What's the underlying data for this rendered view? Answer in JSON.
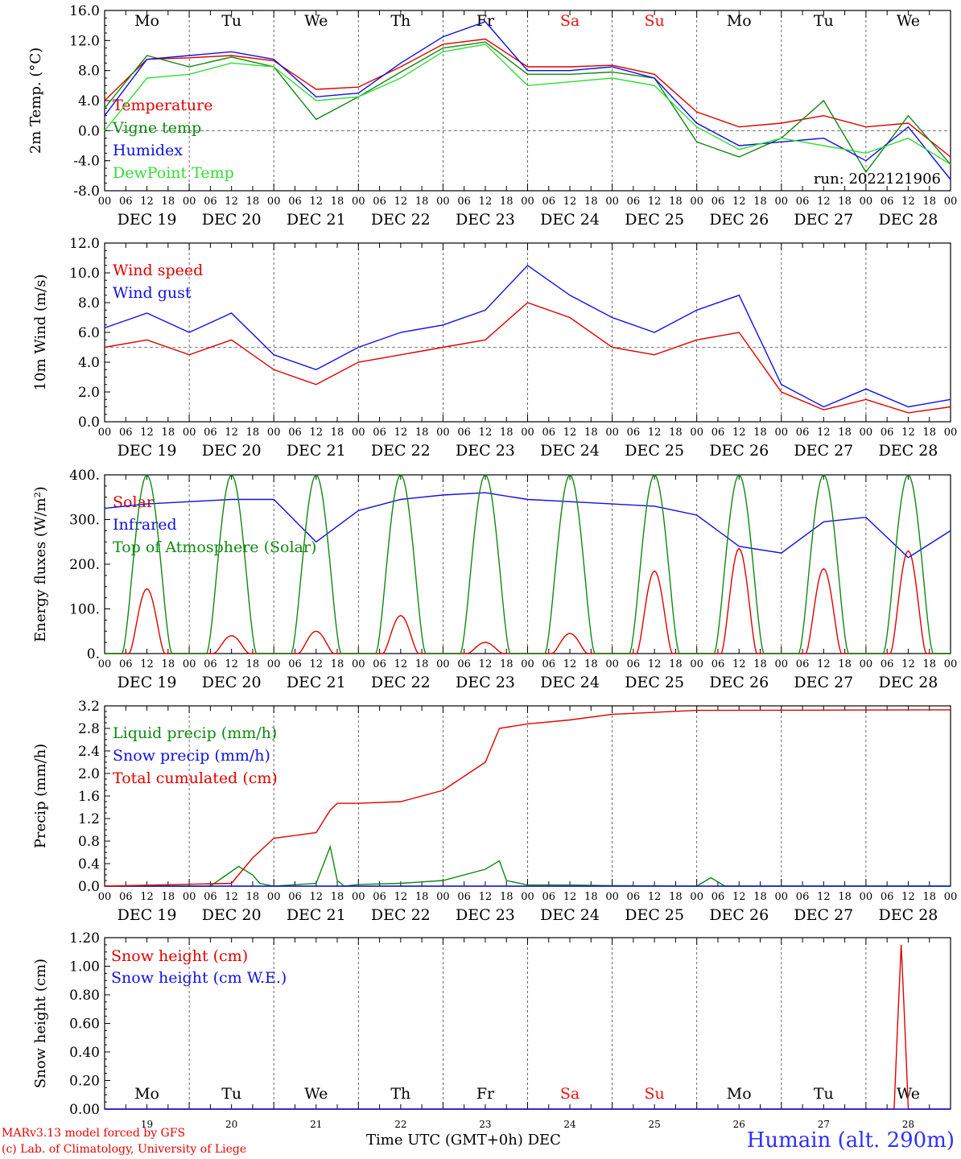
{
  "footer": {
    "model_line": "MARv3.13 model forced by GFS",
    "credit_line": "(c) Lab. of Climatology, University of Liege",
    "time_axis_label": "Time UTC (GMT+0h) DEC",
    "station": "Humain (alt. 290m)"
  },
  "colors": {
    "red": "#e00000",
    "green": "#118811",
    "blue": "#1010e0",
    "lightgreen": "#33dd33",
    "weekend": "#ee1111"
  },
  "days": {
    "weekday_labels": [
      "Mo",
      "Tu",
      "We",
      "Th",
      "Fr",
      "Sa",
      "Su",
      "Mo",
      "Tu",
      "We"
    ],
    "weekend_flags": [
      false,
      false,
      false,
      false,
      false,
      true,
      true,
      false,
      false,
      false
    ],
    "date_labels": [
      "DEC 19",
      "DEC 20",
      "DEC 21",
      "DEC 22",
      "DEC 23",
      "DEC 24",
      "DEC 25",
      "DEC 26",
      "DEC 27",
      "DEC 28"
    ],
    "day_numbers": [
      "19",
      "20",
      "21",
      "22",
      "23",
      "24",
      "25",
      "26",
      "27",
      "28"
    ],
    "hour_ticks": [
      "00",
      "06",
      "12",
      "18"
    ],
    "final_tick": "00"
  },
  "chart_data": [
    {
      "type": "line",
      "ylabel": "2m Temp. (°C)",
      "ylim": [
        -8,
        16
      ],
      "yticks": [
        "-8.0",
        "-4.0",
        "0.0",
        "4.0",
        "8.0",
        "12.0",
        "16.0"
      ],
      "reference_line": 0,
      "annotation": "run: 2022121906",
      "show_weekdays": true,
      "x_hours": [
        0,
        12,
        24,
        36,
        48,
        60,
        72,
        84,
        96,
        108,
        120,
        132,
        144,
        156,
        168,
        180,
        192,
        204,
        216,
        228,
        240
      ],
      "series": [
        {
          "name": "Temperature",
          "color": "#e00000",
          "values": [
            4.0,
            9.5,
            9.7,
            10.0,
            9.3,
            5.5,
            5.8,
            8.5,
            11.5,
            12.2,
            8.5,
            8.5,
            8.7,
            7.5,
            2.5,
            0.5,
            1.0,
            2.0,
            0.5,
            1.0,
            -3.5
          ]
        },
        {
          "name": "Vigne temp",
          "color": "#118811",
          "values": [
            3.0,
            10.0,
            8.5,
            9.8,
            8.5,
            1.5,
            4.5,
            7.8,
            11.0,
            11.8,
            7.5,
            7.5,
            7.8,
            7.0,
            -1.5,
            -3.5,
            -1.0,
            4.0,
            -5.5,
            2.0,
            -4.5
          ]
        },
        {
          "name": "Humidex",
          "color": "#1010e0",
          "values": [
            2.0,
            9.5,
            10.0,
            10.5,
            9.5,
            4.5,
            5.0,
            9.0,
            12.5,
            14.5,
            8.0,
            8.0,
            8.5,
            7.0,
            1.0,
            -2.0,
            -1.5,
            -1.0,
            -4.0,
            0.5,
            -6.5
          ]
        },
        {
          "name": "DewPoint Temp",
          "color": "#33dd33",
          "values": [
            0.0,
            7.0,
            7.5,
            9.0,
            8.5,
            4.0,
            4.5,
            7.0,
            10.5,
            11.5,
            6.0,
            6.5,
            7.0,
            6.0,
            0.5,
            -2.5,
            -1.0,
            -2.0,
            -3.0,
            -1.0,
            -4.5
          ]
        }
      ]
    },
    {
      "type": "line",
      "ylabel": "10m Wind (m/s)",
      "ylim": [
        0,
        12
      ],
      "yticks": [
        "0.0",
        "2.0",
        "4.0",
        "6.0",
        "8.0",
        "10.0",
        "12.0"
      ],
      "reference_line": 5,
      "show_weekdays": false,
      "x_hours": [
        0,
        12,
        24,
        36,
        48,
        60,
        72,
        84,
        96,
        108,
        120,
        132,
        144,
        156,
        168,
        180,
        192,
        204,
        216,
        228,
        240
      ],
      "series": [
        {
          "name": "Wind speed",
          "color": "#e00000",
          "values": [
            5.0,
            5.5,
            4.5,
            5.5,
            3.5,
            2.5,
            4.0,
            4.5,
            5.0,
            5.5,
            8.0,
            7.0,
            5.0,
            4.5,
            5.5,
            6.0,
            2.0,
            0.8,
            1.5,
            0.6,
            1.0
          ]
        },
        {
          "name": "Wind gust",
          "color": "#1010e0",
          "values": [
            6.3,
            7.3,
            6.0,
            7.3,
            4.5,
            3.5,
            5.0,
            6.0,
            6.5,
            7.5,
            10.5,
            8.5,
            7.0,
            6.0,
            7.5,
            8.5,
            2.5,
            1.0,
            2.2,
            1.0,
            1.5
          ]
        }
      ]
    },
    {
      "type": "line",
      "ylabel": "Energy fluxes (W/m²)",
      "ylim": [
        0,
        400
      ],
      "yticks": [
        "0.",
        "100.",
        "200.",
        "300.",
        "400."
      ],
      "show_weekdays": false,
      "daily_peak_hour": 12,
      "series": [
        {
          "name": "Solar",
          "color": "#e00000",
          "daily_peaks": [
            145,
            40,
            50,
            85,
            25,
            45,
            185,
            235,
            190,
            230
          ]
        },
        {
          "name": "Infrared",
          "color": "#1010e0",
          "x_hours": [
            0,
            12,
            24,
            36,
            48,
            60,
            72,
            84,
            96,
            108,
            120,
            132,
            144,
            156,
            168,
            180,
            192,
            204,
            216,
            228,
            240
          ],
          "values": [
            325,
            335,
            340,
            345,
            345,
            250,
            320,
            345,
            355,
            360,
            345,
            340,
            335,
            330,
            310,
            240,
            225,
            295,
            305,
            215,
            275
          ]
        },
        {
          "name": "Top of Atmosphere (Solar)",
          "color": "#118811",
          "daily_peaks": [
            400,
            400,
            400,
            400,
            400,
            400,
            400,
            400,
            400,
            400
          ]
        }
      ]
    },
    {
      "type": "line",
      "ylabel": "Precip (mm/h)",
      "ylim": [
        0,
        3.2
      ],
      "yticks": [
        "0.0",
        "0.4",
        "0.8",
        "1.2",
        "1.6",
        "2.0",
        "2.4",
        "2.8",
        "3.2"
      ],
      "show_weekdays": false,
      "series": [
        {
          "name": "Liquid precip (mm/h)",
          "color": "#118811",
          "x_hours": [
            0,
            30,
            38,
            42,
            44,
            48,
            60,
            64,
            66,
            68,
            72,
            84,
            96,
            108,
            112,
            114,
            120,
            132,
            144,
            168,
            172,
            176,
            240
          ],
          "values": [
            0,
            0,
            0.35,
            0.2,
            0.05,
            0,
            0.05,
            0.7,
            0.1,
            0,
            0.03,
            0.05,
            0.1,
            0.3,
            0.45,
            0.1,
            0.02,
            0.02,
            0.01,
            0,
            0.15,
            0,
            0
          ]
        },
        {
          "name": "Snow precip (mm/h)",
          "color": "#1010e0",
          "x_hours": [
            0,
            240
          ],
          "values": [
            0,
            0
          ]
        },
        {
          "name": "Total cumulated (cm)",
          "color": "#e00000",
          "x_hours": [
            0,
            36,
            42,
            48,
            60,
            64,
            66,
            72,
            84,
            96,
            108,
            112,
            120,
            132,
            144,
            168,
            240
          ],
          "values": [
            0,
            0.05,
            0.5,
            0.85,
            0.95,
            1.35,
            1.47,
            1.47,
            1.5,
            1.7,
            2.2,
            2.8,
            2.88,
            2.95,
            3.05,
            3.12,
            3.13
          ]
        }
      ]
    },
    {
      "type": "line",
      "ylabel": "Snow height (cm)",
      "ylim": [
        0,
        1.2
      ],
      "yticks": [
        "0.00",
        "0.20",
        "0.40",
        "0.60",
        "0.80",
        "1.00",
        "1.20"
      ],
      "show_weekdays": true,
      "series": [
        {
          "name": "Snow height (cm)",
          "color": "#e00000",
          "x_hours": [
            0,
            224,
            225,
            226,
            227,
            228,
            240
          ],
          "values": [
            0,
            0,
            0.6,
            1.15,
            0.6,
            0,
            0
          ]
        },
        {
          "name": "Snow height (cm W.E.)",
          "color": "#1010e0",
          "x_hours": [
            0,
            240
          ],
          "values": [
            0,
            0
          ]
        }
      ]
    }
  ]
}
